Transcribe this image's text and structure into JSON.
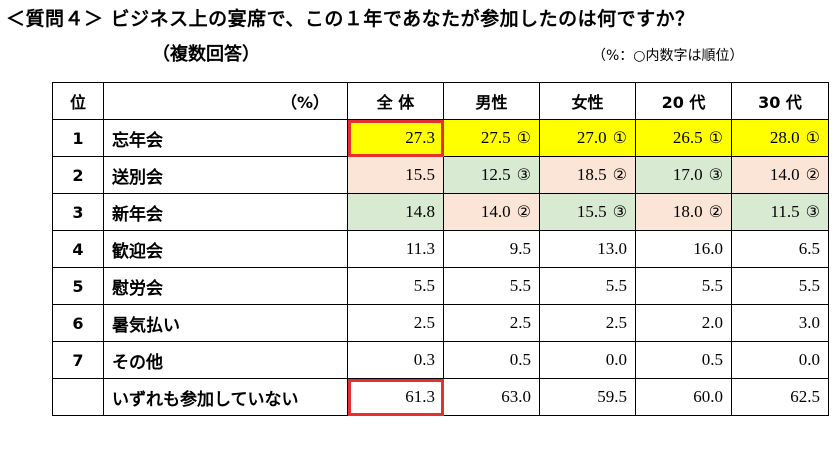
{
  "title": "＜質問４＞ ビジネス上の宴席で、この１年であなたが参加したのは何ですか？",
  "subtitle": "（複数回答）",
  "note": "（%：○内数字は順位）",
  "header": {
    "rank": "位",
    "item": "（%）",
    "cols": [
      "全 体",
      "男性",
      "女性",
      "20 代",
      "30 代"
    ]
  },
  "rows": [
    {
      "rank": "1",
      "label": "忘年会",
      "cells": [
        {
          "v": "27.3",
          "r": "",
          "bg": "yellow"
        },
        {
          "v": "27.5",
          "r": "①",
          "bg": "yellow"
        },
        {
          "v": "27.0",
          "r": "①",
          "bg": "yellow"
        },
        {
          "v": "26.5",
          "r": "①",
          "bg": "yellow"
        },
        {
          "v": "28.0",
          "r": "①",
          "bg": "yellow"
        }
      ]
    },
    {
      "rank": "2",
      "label": "送別会",
      "cells": [
        {
          "v": "15.5",
          "r": "",
          "bg": "pink"
        },
        {
          "v": "12.5",
          "r": "③",
          "bg": "green"
        },
        {
          "v": "18.5",
          "r": "②",
          "bg": "pink"
        },
        {
          "v": "17.0",
          "r": "③",
          "bg": "green"
        },
        {
          "v": "14.0",
          "r": "②",
          "bg": "pink"
        }
      ]
    },
    {
      "rank": "3",
      "label": "新年会",
      "cells": [
        {
          "v": "14.8",
          "r": "",
          "bg": "green"
        },
        {
          "v": "14.0",
          "r": "②",
          "bg": "pink"
        },
        {
          "v": "15.5",
          "r": "③",
          "bg": "green"
        },
        {
          "v": "18.0",
          "r": "②",
          "bg": "pink"
        },
        {
          "v": "11.5",
          "r": "③",
          "bg": "green"
        }
      ]
    },
    {
      "rank": "4",
      "label": "歓迎会",
      "cells": [
        {
          "v": "11.3",
          "r": "",
          "bg": ""
        },
        {
          "v": "9.5",
          "r": "",
          "bg": ""
        },
        {
          "v": "13.0",
          "r": "",
          "bg": ""
        },
        {
          "v": "16.0",
          "r": "",
          "bg": ""
        },
        {
          "v": "6.5",
          "r": "",
          "bg": ""
        }
      ]
    },
    {
      "rank": "5",
      "label": "慰労会",
      "cells": [
        {
          "v": "5.5",
          "r": "",
          "bg": ""
        },
        {
          "v": "5.5",
          "r": "",
          "bg": ""
        },
        {
          "v": "5.5",
          "r": "",
          "bg": ""
        },
        {
          "v": "5.5",
          "r": "",
          "bg": ""
        },
        {
          "v": "5.5",
          "r": "",
          "bg": ""
        }
      ]
    },
    {
      "rank": "6",
      "label": "暑気払い",
      "cells": [
        {
          "v": "2.5",
          "r": "",
          "bg": ""
        },
        {
          "v": "2.5",
          "r": "",
          "bg": ""
        },
        {
          "v": "2.5",
          "r": "",
          "bg": ""
        },
        {
          "v": "2.0",
          "r": "",
          "bg": ""
        },
        {
          "v": "3.0",
          "r": "",
          "bg": ""
        }
      ]
    },
    {
      "rank": "7",
      "label": "その他",
      "cells": [
        {
          "v": "0.3",
          "r": "",
          "bg": ""
        },
        {
          "v": "0.5",
          "r": "",
          "bg": ""
        },
        {
          "v": "0.0",
          "r": "",
          "bg": ""
        },
        {
          "v": "0.5",
          "r": "",
          "bg": ""
        },
        {
          "v": "0.0",
          "r": "",
          "bg": ""
        }
      ]
    },
    {
      "rank": "",
      "label": "いずれも参加していない",
      "cells": [
        {
          "v": "61.3",
          "r": "",
          "bg": ""
        },
        {
          "v": "63.0",
          "r": "",
          "bg": ""
        },
        {
          "v": "59.5",
          "r": "",
          "bg": ""
        },
        {
          "v": "60.0",
          "r": "",
          "bg": ""
        },
        {
          "v": "62.5",
          "r": "",
          "bg": ""
        }
      ]
    }
  ],
  "highlight_color": "#e53030",
  "highlighted_cells": [
    "忘年会/全 体",
    "いずれも参加していない/全 体"
  ]
}
